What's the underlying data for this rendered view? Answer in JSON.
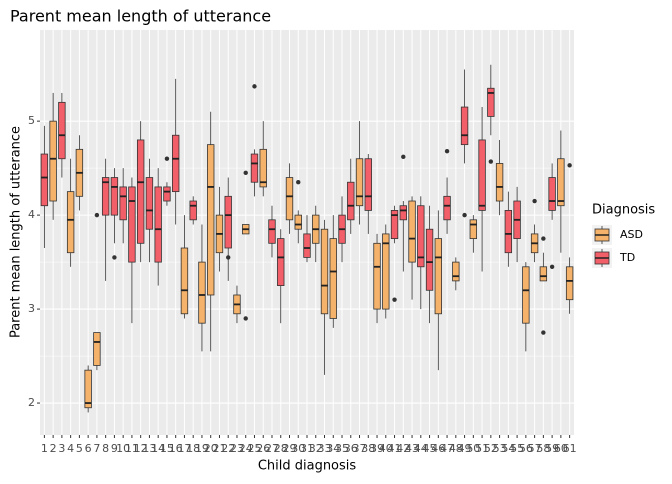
{
  "chart_data": {
    "type": "boxplot",
    "title": "Parent mean length of utterance",
    "x_label": "Child diagnosis",
    "y_label": "Parent mean length of utterance",
    "legend_title": "Diagnosis",
    "legend_position": "right",
    "groups": [
      {
        "name": "ASD",
        "color": "#f4b26a"
      },
      {
        "name": "TD",
        "color": "#f25f69"
      }
    ],
    "ylim": [
      1.66,
      5.97
    ],
    "yticks": [
      2,
      3,
      4,
      5
    ],
    "grid": true,
    "categories": [
      "1",
      "2",
      "3",
      "4",
      "5",
      "6",
      "7",
      "8",
      "9",
      "10",
      "11",
      "12",
      "13",
      "14",
      "15",
      "16",
      "17",
      "18",
      "19",
      "20",
      "21",
      "22",
      "23",
      "24",
      "25",
      "26",
      "27",
      "28",
      "29",
      "30",
      "31",
      "32",
      "33",
      "34",
      "35",
      "36",
      "37",
      "38",
      "39",
      "40",
      "41",
      "42",
      "43",
      "44",
      "45",
      "46",
      "47",
      "48",
      "49",
      "50",
      "51",
      "52",
      "53",
      "54",
      "55",
      "56",
      "57",
      "58",
      "59",
      "60",
      "61"
    ],
    "boxes": [
      {
        "group": "TD",
        "min": 3.65,
        "q1": 4.1,
        "median": 4.4,
        "q3": 4.65,
        "max": 4.95,
        "outliers": []
      },
      {
        "group": "ASD",
        "min": 3.95,
        "q1": 4.15,
        "median": 4.6,
        "q3": 5.0,
        "max": 5.3,
        "outliers": []
      },
      {
        "group": "TD",
        "min": 4.4,
        "q1": 4.6,
        "median": 4.85,
        "q3": 5.2,
        "max": 5.3,
        "outliers": []
      },
      {
        "group": "ASD",
        "min": 3.45,
        "q1": 3.6,
        "median": 3.95,
        "q3": 4.25,
        "max": 4.6,
        "outliers": []
      },
      {
        "group": "ASD",
        "min": 4.05,
        "q1": 4.2,
        "median": 4.45,
        "q3": 4.7,
        "max": 4.85,
        "outliers": []
      },
      {
        "group": "ASD",
        "min": 1.9,
        "q1": 1.95,
        "median": 2.0,
        "q3": 2.35,
        "max": 2.4,
        "outliers": []
      },
      {
        "group": "ASD",
        "min": 2.35,
        "q1": 2.4,
        "median": 2.65,
        "q3": 2.75,
        "max": 2.75,
        "outliers": [
          4.0
        ]
      },
      {
        "group": "TD",
        "min": 3.3,
        "q1": 4.0,
        "median": 4.35,
        "q3": 4.4,
        "max": 4.6,
        "outliers": []
      },
      {
        "group": "TD",
        "min": 3.7,
        "q1": 4.0,
        "median": 4.3,
        "q3": 4.4,
        "max": 4.5,
        "outliers": [
          3.55
        ]
      },
      {
        "group": "TD",
        "min": 3.7,
        "q1": 3.95,
        "median": 4.2,
        "q3": 4.3,
        "max": 4.5,
        "outliers": []
      },
      {
        "group": "TD",
        "min": 2.85,
        "q1": 3.5,
        "median": 4.15,
        "q3": 4.3,
        "max": 4.4,
        "outliers": []
      },
      {
        "group": "TD",
        "min": 3.5,
        "q1": 3.7,
        "median": 4.35,
        "q3": 4.8,
        "max": 5.0,
        "outliers": []
      },
      {
        "group": "TD",
        "min": 3.5,
        "q1": 3.85,
        "median": 4.05,
        "q3": 4.4,
        "max": 4.6,
        "outliers": []
      },
      {
        "group": "TD",
        "min": 3.25,
        "q1": 3.5,
        "median": 3.85,
        "q3": 4.3,
        "max": 4.5,
        "outliers": []
      },
      {
        "group": "TD",
        "min": 4.1,
        "q1": 4.15,
        "median": 4.25,
        "q3": 4.3,
        "max": 4.35,
        "outliers": [
          4.6
        ]
      },
      {
        "group": "TD",
        "min": 3.9,
        "q1": 4.25,
        "median": 4.6,
        "q3": 4.85,
        "max": 5.45,
        "outliers": []
      },
      {
        "group": "ASD",
        "min": 2.9,
        "q1": 2.95,
        "median": 3.2,
        "q3": 3.65,
        "max": 4.0,
        "outliers": []
      },
      {
        "group": "TD",
        "min": 3.9,
        "q1": 3.95,
        "median": 4.1,
        "q3": 4.15,
        "max": 4.2,
        "outliers": []
      },
      {
        "group": "ASD",
        "min": 2.55,
        "q1": 2.85,
        "median": 3.15,
        "q3": 3.5,
        "max": 3.9,
        "outliers": []
      },
      {
        "group": "ASD",
        "min": 2.55,
        "q1": 3.15,
        "median": 4.3,
        "q3": 4.75,
        "max": 5.1,
        "outliers": []
      },
      {
        "group": "ASD",
        "min": 3.4,
        "q1": 3.6,
        "median": 3.8,
        "q3": 4.0,
        "max": 4.3,
        "outliers": []
      },
      {
        "group": "TD",
        "min": 3.3,
        "q1": 3.65,
        "median": 4.0,
        "q3": 4.2,
        "max": 4.4,
        "outliers": [
          3.55
        ]
      },
      {
        "group": "ASD",
        "min": 2.85,
        "q1": 2.95,
        "median": 3.05,
        "q3": 3.15,
        "max": 3.25,
        "outliers": []
      },
      {
        "group": "ASD",
        "min": 3.8,
        "q1": 3.8,
        "median": 3.85,
        "q3": 3.9,
        "max": 3.9,
        "outliers": [
          2.9,
          4.45
        ]
      },
      {
        "group": "TD",
        "min": 4.2,
        "q1": 4.35,
        "median": 4.55,
        "q3": 4.65,
        "max": 4.7,
        "outliers": [
          5.37
        ]
      },
      {
        "group": "ASD",
        "min": 4.2,
        "q1": 4.3,
        "median": 4.35,
        "q3": 4.7,
        "max": 5.0,
        "outliers": []
      },
      {
        "group": "TD",
        "min": 3.55,
        "q1": 3.7,
        "median": 3.85,
        "q3": 3.95,
        "max": 4.1,
        "outliers": []
      },
      {
        "group": "TD",
        "min": 2.85,
        "q1": 3.25,
        "median": 3.55,
        "q3": 3.75,
        "max": 3.85,
        "outliers": []
      },
      {
        "group": "ASD",
        "min": 3.8,
        "q1": 3.95,
        "median": 4.2,
        "q3": 4.4,
        "max": 4.55,
        "outliers": []
      },
      {
        "group": "ASD",
        "min": 3.7,
        "q1": 3.85,
        "median": 3.9,
        "q3": 4.0,
        "max": 4.05,
        "outliers": [
          4.35
        ]
      },
      {
        "group": "TD",
        "min": 3.5,
        "q1": 3.55,
        "median": 3.65,
        "q3": 3.8,
        "max": 4.0,
        "outliers": []
      },
      {
        "group": "ASD",
        "min": 3.5,
        "q1": 3.7,
        "median": 3.85,
        "q3": 4.0,
        "max": 4.1,
        "outliers": []
      },
      {
        "group": "ASD",
        "min": 2.3,
        "q1": 2.95,
        "median": 3.25,
        "q3": 3.85,
        "max": 3.95,
        "outliers": []
      },
      {
        "group": "ASD",
        "min": 2.8,
        "q1": 2.9,
        "median": 3.4,
        "q3": 3.75,
        "max": 4.0,
        "outliers": []
      },
      {
        "group": "TD",
        "min": 3.5,
        "q1": 3.7,
        "median": 3.85,
        "q3": 4.0,
        "max": 4.2,
        "outliers": []
      },
      {
        "group": "TD",
        "min": 3.8,
        "q1": 3.95,
        "median": 4.1,
        "q3": 4.35,
        "max": 4.6,
        "outliers": []
      },
      {
        "group": "ASD",
        "min": 3.9,
        "q1": 4.1,
        "median": 4.2,
        "q3": 4.6,
        "max": 5.0,
        "outliers": []
      },
      {
        "group": "TD",
        "min": 3.8,
        "q1": 4.05,
        "median": 4.2,
        "q3": 4.6,
        "max": 4.65,
        "outliers": []
      },
      {
        "group": "ASD",
        "min": 2.85,
        "q1": 3.0,
        "median": 3.45,
        "q3": 3.7,
        "max": 3.8,
        "outliers": []
      },
      {
        "group": "ASD",
        "min": 2.9,
        "q1": 3.0,
        "median": 3.7,
        "q3": 3.8,
        "max": 3.9,
        "outliers": []
      },
      {
        "group": "TD",
        "min": 3.7,
        "q1": 3.75,
        "median": 4.0,
        "q3": 4.05,
        "max": 4.1,
        "outliers": [
          3.1
        ]
      },
      {
        "group": "TD",
        "min": 3.4,
        "q1": 3.95,
        "median": 4.05,
        "q3": 4.1,
        "max": 4.15,
        "outliers": [
          4.62
        ]
      },
      {
        "group": "ASD",
        "min": 3.1,
        "q1": 3.5,
        "median": 3.75,
        "q3": 4.15,
        "max": 4.2,
        "outliers": []
      },
      {
        "group": "TD",
        "min": 3.0,
        "q1": 3.45,
        "median": 3.55,
        "q3": 4.1,
        "max": 4.2,
        "outliers": []
      },
      {
        "group": "TD",
        "min": 2.85,
        "q1": 3.2,
        "median": 3.5,
        "q3": 3.85,
        "max": 4.1,
        "outliers": []
      },
      {
        "group": "ASD",
        "min": 2.35,
        "q1": 2.95,
        "median": 3.55,
        "q3": 3.75,
        "max": 4.05,
        "outliers": []
      },
      {
        "group": "TD",
        "min": 3.8,
        "q1": 3.95,
        "median": 4.1,
        "q3": 4.2,
        "max": 4.4,
        "outliers": [
          4.68
        ]
      },
      {
        "group": "ASD",
        "min": 3.2,
        "q1": 3.3,
        "median": 3.35,
        "q3": 3.5,
        "max": 3.55,
        "outliers": []
      },
      {
        "group": "TD",
        "min": 4.55,
        "q1": 4.75,
        "median": 4.85,
        "q3": 5.15,
        "max": 5.55,
        "outliers": [
          4.0
        ]
      },
      {
        "group": "ASD",
        "min": 3.6,
        "q1": 3.75,
        "median": 3.9,
        "q3": 3.95,
        "max": 4.0,
        "outliers": []
      },
      {
        "group": "TD",
        "min": 3.4,
        "q1": 4.05,
        "median": 4.1,
        "q3": 4.8,
        "max": 5.15,
        "outliers": []
      },
      {
        "group": "TD",
        "min": 4.85,
        "q1": 5.05,
        "median": 5.3,
        "q3": 5.35,
        "max": 5.6,
        "outliers": [
          4.57
        ]
      },
      {
        "group": "ASD",
        "min": 4.0,
        "q1": 4.15,
        "median": 4.3,
        "q3": 4.55,
        "max": 4.8,
        "outliers": []
      },
      {
        "group": "TD",
        "min": 3.45,
        "q1": 3.6,
        "median": 3.8,
        "q3": 4.05,
        "max": 4.25,
        "outliers": []
      },
      {
        "group": "TD",
        "min": 3.5,
        "q1": 3.75,
        "median": 3.95,
        "q3": 4.15,
        "max": 4.3,
        "outliers": []
      },
      {
        "group": "ASD",
        "min": 2.55,
        "q1": 2.85,
        "median": 3.2,
        "q3": 3.45,
        "max": 3.5,
        "outliers": []
      },
      {
        "group": "ASD",
        "min": 3.5,
        "q1": 3.6,
        "median": 3.7,
        "q3": 3.8,
        "max": 3.9,
        "outliers": [
          4.15
        ]
      },
      {
        "group": "ASD",
        "min": 3.3,
        "q1": 3.3,
        "median": 3.35,
        "q3": 3.45,
        "max": 3.6,
        "outliers": [
          2.75,
          3.75
        ]
      },
      {
        "group": "TD",
        "min": 3.95,
        "q1": 4.05,
        "median": 4.15,
        "q3": 4.4,
        "max": 4.55,
        "outliers": [
          3.45
        ]
      },
      {
        "group": "ASD",
        "min": 3.6,
        "q1": 4.1,
        "median": 4.15,
        "q3": 4.6,
        "max": 4.9,
        "outliers": []
      },
      {
        "group": "ASD",
        "min": 2.95,
        "q1": 3.1,
        "median": 3.3,
        "q3": 3.45,
        "max": 3.55,
        "outliers": [
          4.53
        ]
      }
    ]
  }
}
